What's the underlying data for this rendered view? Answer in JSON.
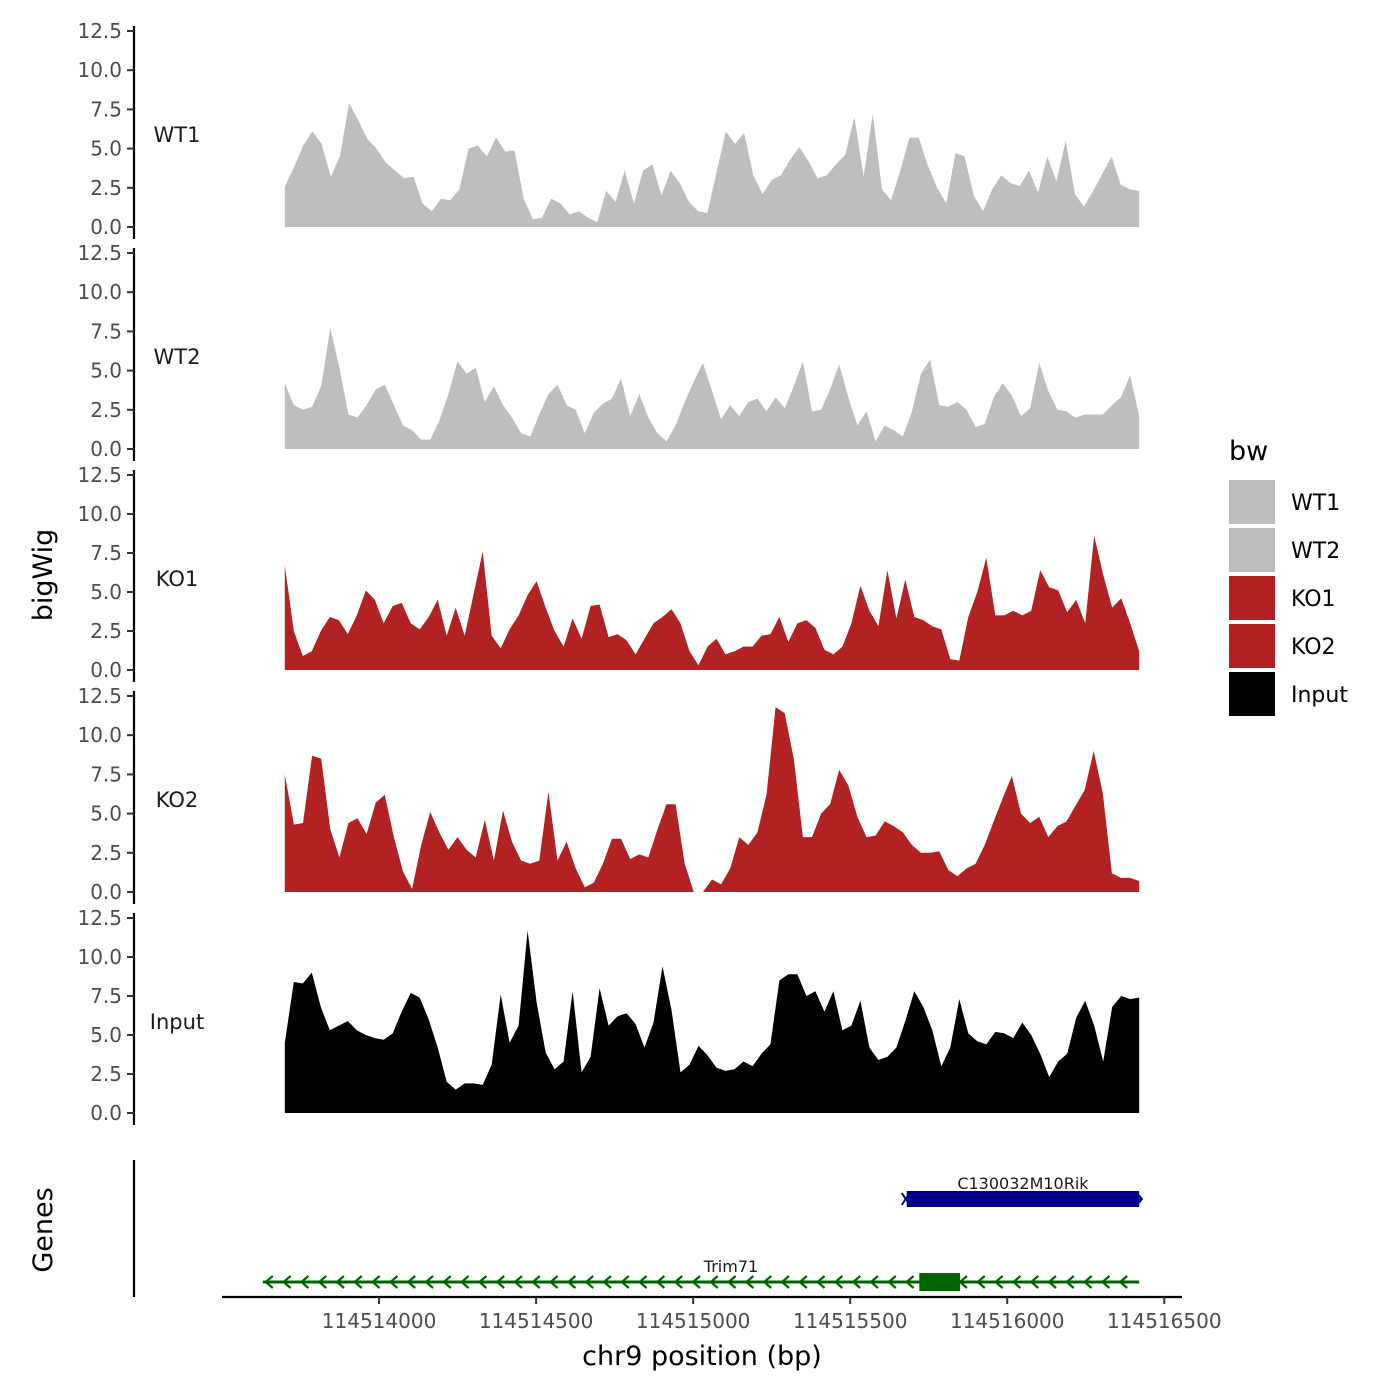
{
  "chart_data": {
    "type": "area",
    "ylabel": "bigWig",
    "xlabel": "chr9 position (bp)",
    "gene_panel_label": "Genes",
    "region_start": 114513700,
    "region_end": 114516420,
    "xlim": [
      114513500,
      114516550
    ],
    "ylim": [
      0,
      12.5
    ],
    "y_ticks": [
      "0.0",
      "2.5",
      "5.0",
      "7.5",
      "10.0",
      "12.5"
    ],
    "x_ticks": [
      114514000,
      114514500,
      114515000,
      114515500,
      114516000,
      114516500
    ],
    "x_tick_labels": [
      "114514000",
      "114514500",
      "114515000",
      "114515500",
      "114516000",
      "114516500"
    ],
    "legend": {
      "title": "bw",
      "entries": [
        {
          "name": "WT1",
          "color": "#bebebe"
        },
        {
          "name": "WT2",
          "color": "#bebebe"
        },
        {
          "name": "KO1",
          "color": "#b22222"
        },
        {
          "name": "KO2",
          "color": "#b22222"
        },
        {
          "name": "Input",
          "color": "#000000"
        }
      ]
    },
    "series": [
      {
        "name": "WT1",
        "color": "#bebebe",
        "values": [
          2.6,
          3.8,
          5.2,
          6.1,
          5.3,
          3.2,
          4.5,
          7.9,
          6.8,
          5.6,
          5.0,
          4.1,
          3.6,
          3.1,
          3.2,
          1.5,
          1.0,
          1.8,
          1.7,
          2.4,
          5.0,
          5.2,
          4.5,
          5.7,
          4.8,
          4.9,
          1.8,
          0.5,
          0.6,
          1.8,
          1.5,
          0.8,
          1.0,
          0.6,
          0.3,
          2.3,
          1.6,
          3.6,
          1.5,
          3.6,
          4.0,
          2.0,
          3.6,
          2.8,
          1.6,
          1.0,
          0.9,
          3.5,
          6.1,
          5.3,
          6.0,
          3.3,
          2.1,
          3.0,
          3.3,
          4.3,
          5.1,
          4.2,
          3.1,
          3.3,
          4.0,
          4.6,
          7.0,
          3.2,
          7.2,
          2.4,
          1.7,
          3.6,
          5.7,
          5.7,
          3.9,
          2.5,
          1.5,
          4.7,
          4.5,
          2.0,
          1.0,
          2.4,
          3.3,
          2.8,
          2.6,
          3.6,
          2.2,
          4.5,
          2.9,
          5.5,
          2.1,
          1.3,
          2.3,
          3.4,
          4.5,
          2.7,
          2.4,
          2.3
        ]
      },
      {
        "name": "WT2",
        "color": "#bebebe",
        "values": [
          4.2,
          2.8,
          2.5,
          2.7,
          4.0,
          7.7,
          5.2,
          2.2,
          2.0,
          2.8,
          3.8,
          4.1,
          2.8,
          1.5,
          1.2,
          0.6,
          0.6,
          1.8,
          3.5,
          5.6,
          4.8,
          5.2,
          3.0,
          4.0,
          2.8,
          2.0,
          1.0,
          0.8,
          2.2,
          3.5,
          4.1,
          2.8,
          2.5,
          1.0,
          2.3,
          2.9,
          3.2,
          4.5,
          2.1,
          3.5,
          2.0,
          1.0,
          0.5,
          1.5,
          3.0,
          4.3,
          5.5,
          3.7,
          1.9,
          2.8,
          2.1,
          3.0,
          3.2,
          2.4,
          3.3,
          2.6,
          4.0,
          5.6,
          2.4,
          2.5,
          3.8,
          5.4,
          3.3,
          1.5,
          2.4,
          0.5,
          1.5,
          1.2,
          0.8,
          2.4,
          4.8,
          5.7,
          2.8,
          2.7,
          3.0,
          2.5,
          1.4,
          1.6,
          3.3,
          4.2,
          3.4,
          2.1,
          2.6,
          5.5,
          3.7,
          2.5,
          2.4,
          2.0,
          2.2,
          2.2,
          2.2,
          2.8,
          3.3,
          4.7,
          2.1
        ]
      },
      {
        "name": "KO1",
        "color": "#b22222",
        "values": [
          6.7,
          2.5,
          0.9,
          1.2,
          2.5,
          3.4,
          3.2,
          2.3,
          3.5,
          5.1,
          4.5,
          3.0,
          4.1,
          4.3,
          3.0,
          2.6,
          3.4,
          4.5,
          2.2,
          4.0,
          2.2,
          4.9,
          7.6,
          2.2,
          1.4,
          2.6,
          3.5,
          4.8,
          5.7,
          4.0,
          2.5,
          1.5,
          3.3,
          2.0,
          4.1,
          4.2,
          2.1,
          2.3,
          1.9,
          1.0,
          2.0,
          3.0,
          3.4,
          3.9,
          3.0,
          1.2,
          0.3,
          1.5,
          2.0,
          1.0,
          1.2,
          1.5,
          1.5,
          2.2,
          2.3,
          3.4,
          1.8,
          3.0,
          3.2,
          2.7,
          1.3,
          1.0,
          1.5,
          3.0,
          5.4,
          3.8,
          2.8,
          6.4,
          3.3,
          5.8,
          3.4,
          3.2,
          2.8,
          2.6,
          0.7,
          0.6,
          3.4,
          5.0,
          7.2,
          3.5,
          3.5,
          3.8,
          3.5,
          3.8,
          6.4,
          5.3,
          5.1,
          3.7,
          4.5,
          3.0,
          8.6,
          6.1,
          4.0,
          4.6,
          3.0,
          1.2
        ]
      },
      {
        "name": "KO2",
        "color": "#b22222",
        "values": [
          7.5,
          4.3,
          4.4,
          8.7,
          8.5,
          4.0,
          2.2,
          4.4,
          4.7,
          3.7,
          5.7,
          6.2,
          3.5,
          1.3,
          0.2,
          3.0,
          5.1,
          3.8,
          2.7,
          3.5,
          2.7,
          2.2,
          4.6,
          2.0,
          5.2,
          3.2,
          2.0,
          1.8,
          2.0,
          6.4,
          2.0,
          3.2,
          1.5,
          0.3,
          0.6,
          1.8,
          3.4,
          3.4,
          2.1,
          2.4,
          2.2,
          4.0,
          5.6,
          5.6,
          1.8,
          0.0,
          0.0,
          0.8,
          0.5,
          1.5,
          3.5,
          3.0,
          3.8,
          6.2,
          11.8,
          11.4,
          8.5,
          3.5,
          3.5,
          5.0,
          5.6,
          7.8,
          6.8,
          4.8,
          3.5,
          3.6,
          4.5,
          4.2,
          3.8,
          3.0,
          2.5,
          2.5,
          2.6,
          1.4,
          1.0,
          1.5,
          1.8,
          3.0,
          4.5,
          6.0,
          7.4,
          5.0,
          4.4,
          4.8,
          3.5,
          4.2,
          4.5,
          5.5,
          6.5,
          9.0,
          6.3,
          1.2,
          0.9,
          0.9,
          0.7
        ]
      },
      {
        "name": "Input",
        "color": "#000000",
        "values": [
          4.5,
          8.4,
          8.3,
          9.0,
          6.8,
          5.3,
          5.6,
          5.9,
          5.3,
          5.0,
          4.8,
          4.7,
          5.1,
          6.5,
          7.7,
          7.4,
          6.0,
          4.2,
          2.0,
          1.5,
          1.9,
          1.9,
          1.8,
          3.1,
          7.6,
          4.5,
          5.6,
          11.7,
          7.1,
          3.9,
          2.8,
          3.3,
          7.8,
          2.6,
          3.6,
          8.0,
          5.6,
          6.2,
          6.4,
          5.7,
          4.2,
          5.8,
          9.4,
          6.6,
          2.6,
          3.1,
          4.3,
          3.7,
          2.9,
          2.7,
          2.8,
          3.3,
          3.0,
          3.8,
          4.4,
          8.5,
          8.9,
          8.9,
          7.5,
          7.8,
          6.5,
          7.8,
          5.3,
          5.6,
          7.2,
          4.2,
          3.4,
          3.6,
          4.2,
          5.9,
          7.8,
          6.8,
          5.3,
          3.0,
          4.2,
          7.3,
          5.1,
          4.6,
          4.4,
          5.2,
          5.1,
          4.8,
          5.8,
          5.0,
          3.8,
          2.3,
          3.3,
          3.8,
          6.1,
          7.2,
          5.6,
          3.3,
          6.8,
          7.5,
          7.3,
          7.4
        ]
      }
    ],
    "genes": [
      {
        "name": "C130032M10Rik",
        "strand": "+",
        "start": 114515680,
        "end": 114516420,
        "color": "#00008b",
        "exons": []
      },
      {
        "name": "Trim71",
        "strand": "-",
        "start": 114513630,
        "end": 114516420,
        "color": "#006400",
        "exons": [
          [
            114515720,
            114515850
          ]
        ]
      }
    ]
  }
}
